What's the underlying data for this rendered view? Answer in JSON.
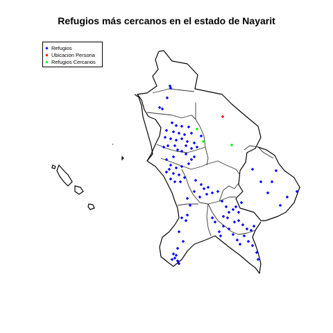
{
  "title": "Refugios más cercanos en el estado de Nayarit",
  "legend": {
    "items": [
      {
        "label": "Refugios",
        "color": "#0000ff"
      },
      {
        "label": "Ubicacion Persona",
        "color": "#ff0000"
      },
      {
        "label": "Refugios Cercanos",
        "color": "#00ff00"
      }
    ]
  },
  "chart_data": {
    "type": "scatter",
    "title": "Refugios más cercanos en el estado de Nayarit",
    "legend_position": "top-left",
    "grid": false,
    "series": [
      {
        "name": "Refugios",
        "color": "#0000ff"
      },
      {
        "name": "Ubicacion Persona",
        "color": "#ff0000"
      },
      {
        "name": "Refugios Cercanos",
        "color": "#00ff00"
      }
    ]
  }
}
